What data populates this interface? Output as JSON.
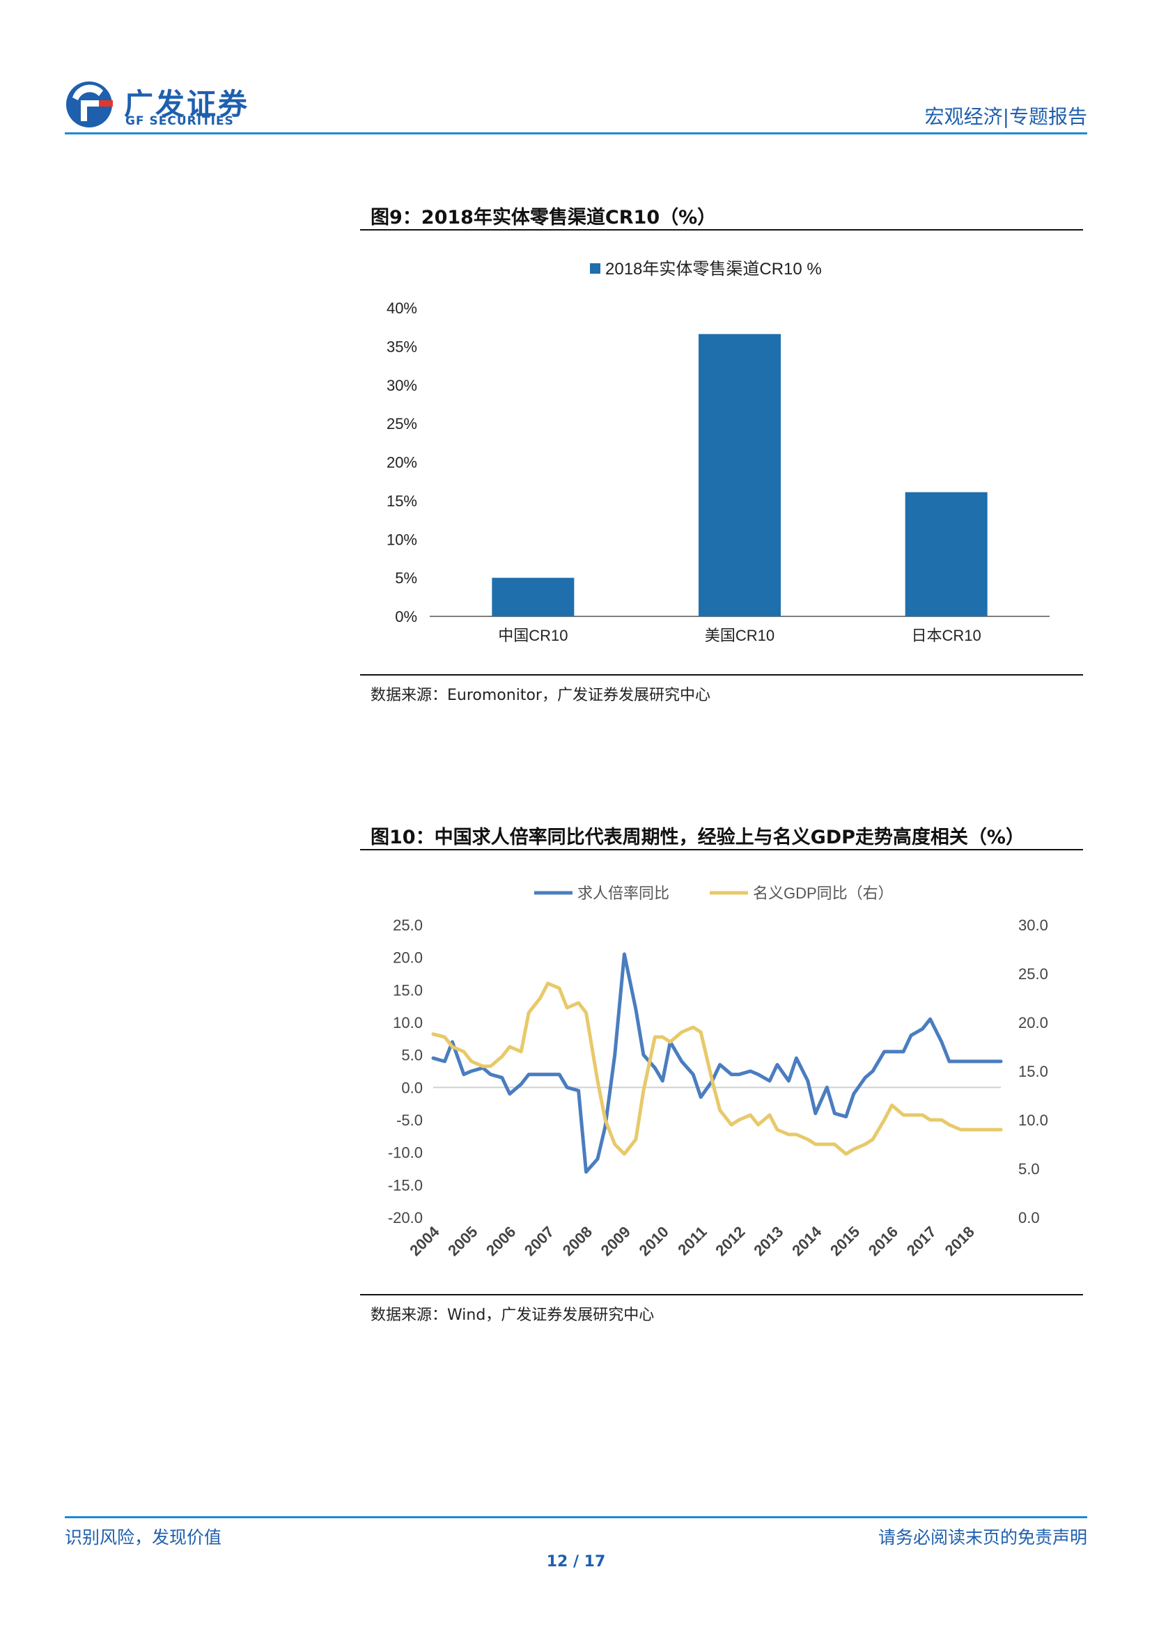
{
  "header": {
    "logo_cn": "广发证券",
    "logo_en": "GF SECURITIES",
    "section_tag": "宏观经济|专题报告"
  },
  "figure9": {
    "title": "图9：2018年实体零售渠道CR10（%）",
    "source": "数据来源：Euromonitor，广发证券发展研究中心"
  },
  "figure10": {
    "title": "图10：中国求人倍率同比代表周期性，经验上与名义GDP走势高度相关（%）",
    "source": "数据来源：Wind，广发证券发展研究中心"
  },
  "chart_data": [
    {
      "type": "bar",
      "title": "",
      "legend": [
        "2018年实体零售渠道CR10 %"
      ],
      "legend_position": "top",
      "categories": [
        "中国CR10",
        "美国CR10",
        "日本CR10"
      ],
      "values": [
        5.0,
        36.6,
        16.1
      ],
      "ylim": [
        0,
        40
      ],
      "yticks": [
        "0%",
        "5%",
        "10%",
        "15%",
        "20%",
        "25%",
        "30%",
        "35%",
        "40%"
      ],
      "color": "#1f6fad",
      "grid": false
    },
    {
      "type": "line",
      "legend_position": "top",
      "x_ticks": [
        "2004",
        "2005",
        "2006",
        "2007",
        "2008",
        "2009",
        "2010",
        "2011",
        "2012",
        "2013",
        "2014",
        "2015",
        "2016",
        "2017",
        "2018"
      ],
      "x_range": [
        2004.0,
        2018.85
      ],
      "y_left": {
        "ylim": [
          -20,
          25
        ],
        "ticks": [
          "25.0",
          "20.0",
          "15.0",
          "10.0",
          "5.0",
          "0.0",
          "-5.0",
          "-10.0",
          "-15.0",
          "-20.0"
        ]
      },
      "y_right": {
        "ylim": [
          0,
          30
        ],
        "ticks": [
          "30.0",
          "25.0",
          "20.0",
          "15.0",
          "10.0",
          "5.0",
          "0.0"
        ]
      },
      "series": [
        {
          "name": "求人倍率同比",
          "axis": "left",
          "color": "#4a7dbf",
          "x": [
            2004.0,
            2004.3,
            2004.5,
            2004.8,
            2005.0,
            2005.3,
            2005.5,
            2005.8,
            2006.0,
            2006.3,
            2006.5,
            2006.8,
            2007.0,
            2007.3,
            2007.5,
            2007.8,
            2008.0,
            2008.3,
            2008.5,
            2008.75,
            2009.0,
            2009.3,
            2009.5,
            2009.8,
            2010.0,
            2010.2,
            2010.5,
            2010.8,
            2011.0,
            2011.3,
            2011.5,
            2011.8,
            2012.0,
            2012.3,
            2012.5,
            2012.8,
            2013.0,
            2013.3,
            2013.5,
            2013.8,
            2014.0,
            2014.3,
            2014.5,
            2014.8,
            2015.0,
            2015.3,
            2015.5,
            2015.8,
            2016.0,
            2016.3,
            2016.5,
            2016.8,
            2017.0,
            2017.3,
            2017.5,
            2017.8,
            2018.0,
            2018.3,
            2018.5,
            2018.85
          ],
          "values": [
            4.5,
            4.0,
            7.0,
            2.0,
            2.5,
            3.0,
            2.0,
            1.5,
            -1.0,
            0.5,
            2.0,
            2.0,
            2.0,
            2.0,
            0.0,
            -0.5,
            -13.0,
            -11.0,
            -6.0,
            5.0,
            20.5,
            12.0,
            5.0,
            3.0,
            1.0,
            7.0,
            4.0,
            2.0,
            -1.5,
            1.0,
            3.5,
            2.0,
            2.0,
            2.5,
            2.0,
            1.0,
            3.5,
            1.0,
            4.5,
            1.0,
            -4.0,
            0.0,
            -4.0,
            -4.5,
            -1.0,
            1.5,
            2.5,
            5.5,
            5.5,
            5.5,
            8.0,
            9.0,
            10.5,
            7.0,
            4.0,
            4.0,
            4.0,
            4.0,
            4.0,
            4.0
          ]
        },
        {
          "name": "名义GDP同比（右）",
          "axis": "right",
          "color": "#e8c96a",
          "x": [
            2004.0,
            2004.3,
            2004.5,
            2004.8,
            2005.0,
            2005.3,
            2005.5,
            2005.8,
            2006.0,
            2006.3,
            2006.5,
            2006.8,
            2007.0,
            2007.3,
            2007.5,
            2007.8,
            2008.0,
            2008.3,
            2008.5,
            2008.75,
            2009.0,
            2009.3,
            2009.5,
            2009.8,
            2010.0,
            2010.2,
            2010.5,
            2010.8,
            2011.0,
            2011.3,
            2011.5,
            2011.8,
            2012.0,
            2012.3,
            2012.5,
            2012.8,
            2013.0,
            2013.3,
            2013.5,
            2013.8,
            2014.0,
            2014.3,
            2014.5,
            2014.8,
            2015.0,
            2015.3,
            2015.5,
            2015.8,
            2016.0,
            2016.3,
            2016.5,
            2016.8,
            2017.0,
            2017.3,
            2017.5,
            2017.8,
            2018.0,
            2018.3,
            2018.5,
            2018.85
          ],
          "values": [
            18.8,
            18.5,
            17.5,
            17.0,
            16.0,
            15.5,
            15.5,
            16.5,
            17.5,
            17.0,
            21.0,
            22.5,
            24.0,
            23.5,
            21.5,
            22.0,
            21.0,
            14.0,
            10.0,
            7.5,
            6.5,
            8.0,
            13.0,
            18.5,
            18.5,
            18.0,
            19.0,
            19.5,
            19.0,
            14.0,
            11.0,
            9.5,
            10.0,
            10.5,
            9.5,
            10.5,
            9.0,
            8.5,
            8.5,
            8.0,
            7.5,
            7.5,
            7.5,
            6.5,
            7.0,
            7.5,
            8.0,
            10.0,
            11.5,
            10.5,
            10.5,
            10.5,
            10.0,
            10.0,
            9.5,
            9.0,
            9.0,
            9.0,
            9.0,
            9.0
          ]
        }
      ],
      "grid": false
    }
  ],
  "footer": {
    "left": "识别风险，发现价值",
    "right": "请务必阅读末页的免责声明",
    "page": "12 / 17"
  }
}
